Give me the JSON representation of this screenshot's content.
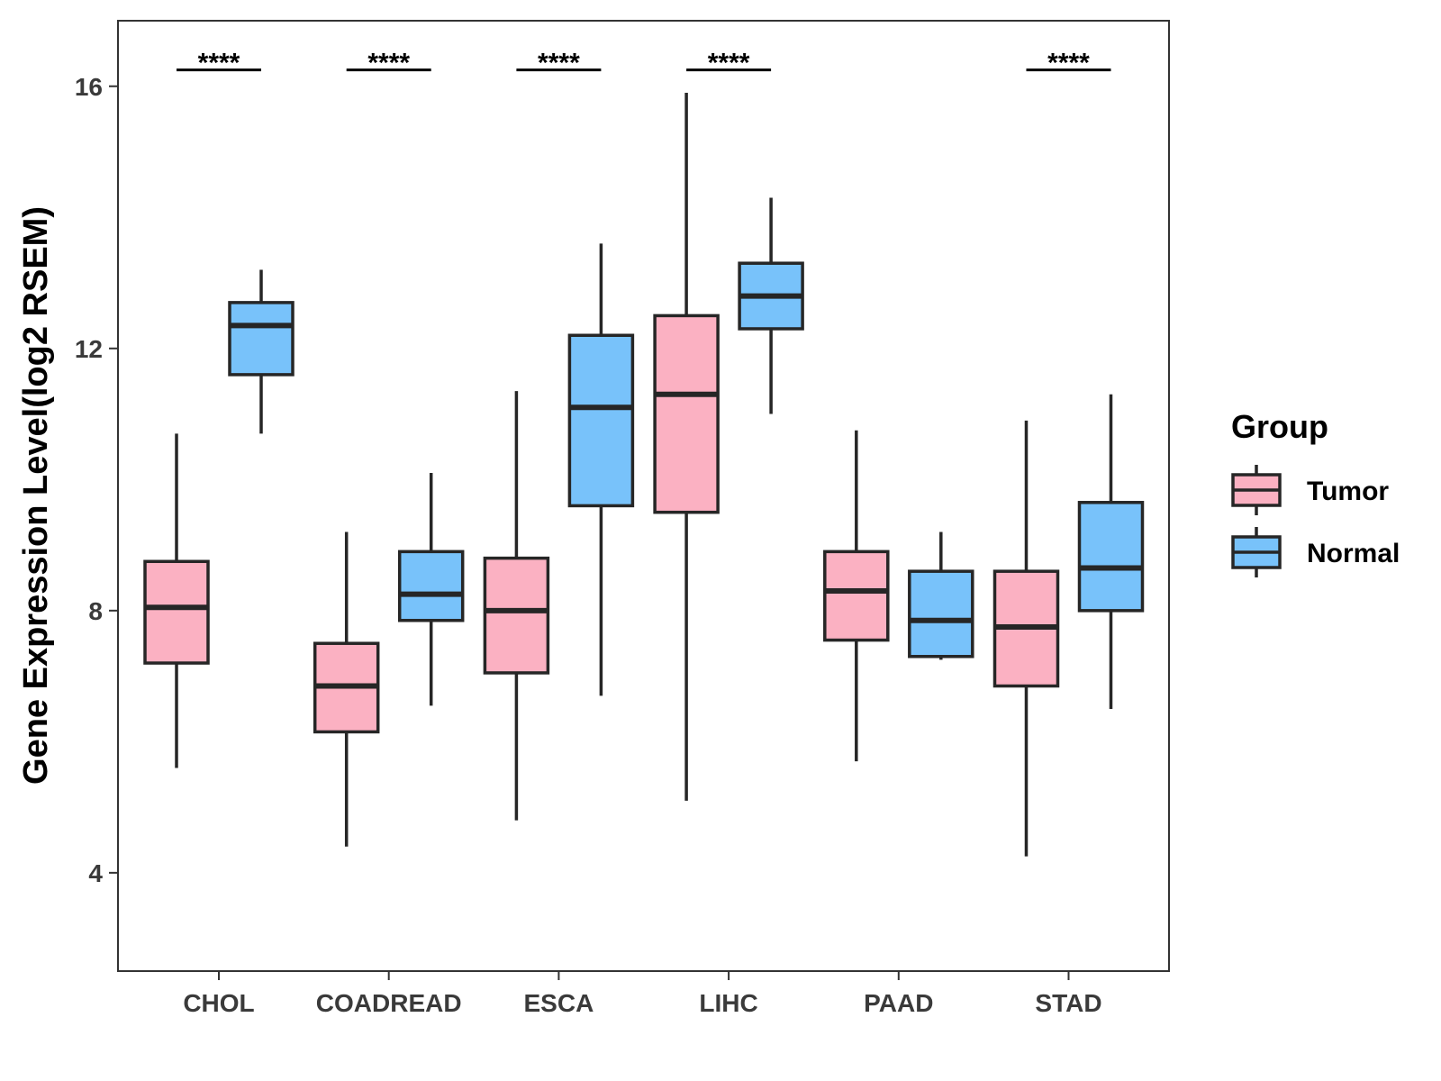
{
  "chart_data": {
    "type": "boxplot",
    "title": "",
    "xlabel": "",
    "ylabel": "Gene Expression Level(log2 RSEM)",
    "ylim": [
      2.5,
      17
    ],
    "yticks": [
      4,
      8,
      12,
      16
    ],
    "ytick_labels": [
      "4",
      "8",
      "12",
      "16"
    ],
    "grid": false,
    "categories": [
      "CHOL",
      "COADREAD",
      "ESCA",
      "LIHC",
      "PAAD",
      "STAD"
    ],
    "legend": {
      "title": "Group",
      "position": "right"
    },
    "series": [
      {
        "name": "Tumor",
        "color": "#fbb1c2",
        "boxes": [
          {
            "min": 5.6,
            "q1": 7.2,
            "median": 8.05,
            "q3": 8.75,
            "max": 10.7
          },
          {
            "min": 4.4,
            "q1": 6.15,
            "median": 6.85,
            "q3": 7.5,
            "max": 9.2
          },
          {
            "min": 4.8,
            "q1": 7.05,
            "median": 8.0,
            "q3": 8.8,
            "max": 11.35
          },
          {
            "min": 5.1,
            "q1": 9.5,
            "median": 11.3,
            "q3": 12.5,
            "max": 15.9
          },
          {
            "min": 5.7,
            "q1": 7.55,
            "median": 8.3,
            "q3": 8.9,
            "max": 10.75
          },
          {
            "min": 4.25,
            "q1": 6.85,
            "median": 7.75,
            "q3": 8.6,
            "max": 10.9
          }
        ]
      },
      {
        "name": "Normal",
        "color": "#78c2fa",
        "boxes": [
          {
            "min": 10.7,
            "q1": 11.6,
            "median": 12.35,
            "q3": 12.7,
            "max": 13.2
          },
          {
            "min": 6.55,
            "q1": 7.85,
            "median": 8.25,
            "q3": 8.9,
            "max": 10.1
          },
          {
            "min": 6.7,
            "q1": 9.6,
            "median": 11.1,
            "q3": 12.2,
            "max": 13.6
          },
          {
            "min": 11.0,
            "q1": 12.3,
            "median": 12.8,
            "q3": 13.3,
            "max": 14.3
          },
          {
            "min": 7.25,
            "q1": 7.3,
            "median": 7.85,
            "q3": 8.6,
            "max": 9.2
          },
          {
            "min": 6.5,
            "q1": 8.0,
            "median": 8.65,
            "q3": 9.65,
            "max": 11.3
          }
        ]
      }
    ],
    "significance": [
      "****",
      "****",
      "****",
      "****",
      "",
      "****"
    ],
    "significance_level": 16.25
  }
}
